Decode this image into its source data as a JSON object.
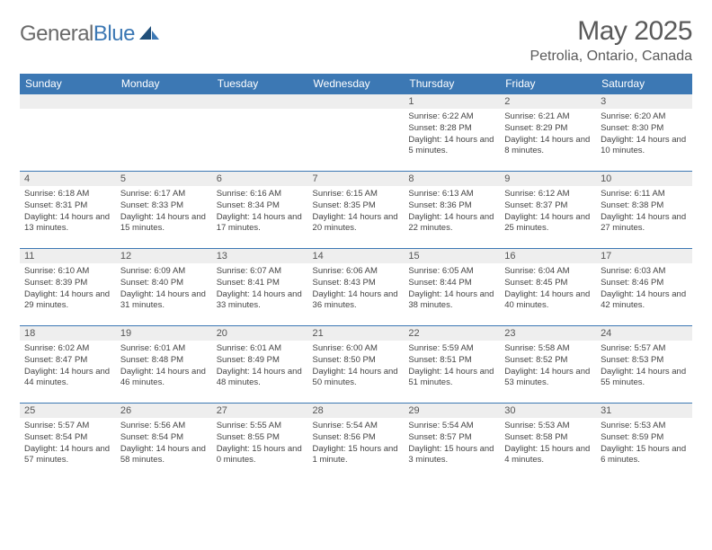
{
  "brand": {
    "part1": "General",
    "part2": "Blue"
  },
  "title": "May 2025",
  "location": "Petrolia, Ontario, Canada",
  "colors": {
    "brand_blue": "#3c78b4",
    "header_row_bg": "#3c78b4",
    "header_row_text": "#ffffff",
    "daynum_bg": "#eeeeee",
    "border": "#3c78b4",
    "text": "#444444"
  },
  "day_headers": [
    "Sunday",
    "Monday",
    "Tuesday",
    "Wednesday",
    "Thursday",
    "Friday",
    "Saturday"
  ],
  "weeks": [
    [
      null,
      null,
      null,
      null,
      {
        "n": "1",
        "sunrise": "6:22 AM",
        "sunset": "8:28 PM",
        "daylight": "14 hours and 5 minutes."
      },
      {
        "n": "2",
        "sunrise": "6:21 AM",
        "sunset": "8:29 PM",
        "daylight": "14 hours and 8 minutes."
      },
      {
        "n": "3",
        "sunrise": "6:20 AM",
        "sunset": "8:30 PM",
        "daylight": "14 hours and 10 minutes."
      }
    ],
    [
      {
        "n": "4",
        "sunrise": "6:18 AM",
        "sunset": "8:31 PM",
        "daylight": "14 hours and 13 minutes."
      },
      {
        "n": "5",
        "sunrise": "6:17 AM",
        "sunset": "8:33 PM",
        "daylight": "14 hours and 15 minutes."
      },
      {
        "n": "6",
        "sunrise": "6:16 AM",
        "sunset": "8:34 PM",
        "daylight": "14 hours and 17 minutes."
      },
      {
        "n": "7",
        "sunrise": "6:15 AM",
        "sunset": "8:35 PM",
        "daylight": "14 hours and 20 minutes."
      },
      {
        "n": "8",
        "sunrise": "6:13 AM",
        "sunset": "8:36 PM",
        "daylight": "14 hours and 22 minutes."
      },
      {
        "n": "9",
        "sunrise": "6:12 AM",
        "sunset": "8:37 PM",
        "daylight": "14 hours and 25 minutes."
      },
      {
        "n": "10",
        "sunrise": "6:11 AM",
        "sunset": "8:38 PM",
        "daylight": "14 hours and 27 minutes."
      }
    ],
    [
      {
        "n": "11",
        "sunrise": "6:10 AM",
        "sunset": "8:39 PM",
        "daylight": "14 hours and 29 minutes."
      },
      {
        "n": "12",
        "sunrise": "6:09 AM",
        "sunset": "8:40 PM",
        "daylight": "14 hours and 31 minutes."
      },
      {
        "n": "13",
        "sunrise": "6:07 AM",
        "sunset": "8:41 PM",
        "daylight": "14 hours and 33 minutes."
      },
      {
        "n": "14",
        "sunrise": "6:06 AM",
        "sunset": "8:43 PM",
        "daylight": "14 hours and 36 minutes."
      },
      {
        "n": "15",
        "sunrise": "6:05 AM",
        "sunset": "8:44 PM",
        "daylight": "14 hours and 38 minutes."
      },
      {
        "n": "16",
        "sunrise": "6:04 AM",
        "sunset": "8:45 PM",
        "daylight": "14 hours and 40 minutes."
      },
      {
        "n": "17",
        "sunrise": "6:03 AM",
        "sunset": "8:46 PM",
        "daylight": "14 hours and 42 minutes."
      }
    ],
    [
      {
        "n": "18",
        "sunrise": "6:02 AM",
        "sunset": "8:47 PM",
        "daylight": "14 hours and 44 minutes."
      },
      {
        "n": "19",
        "sunrise": "6:01 AM",
        "sunset": "8:48 PM",
        "daylight": "14 hours and 46 minutes."
      },
      {
        "n": "20",
        "sunrise": "6:01 AM",
        "sunset": "8:49 PM",
        "daylight": "14 hours and 48 minutes."
      },
      {
        "n": "21",
        "sunrise": "6:00 AM",
        "sunset": "8:50 PM",
        "daylight": "14 hours and 50 minutes."
      },
      {
        "n": "22",
        "sunrise": "5:59 AM",
        "sunset": "8:51 PM",
        "daylight": "14 hours and 51 minutes."
      },
      {
        "n": "23",
        "sunrise": "5:58 AM",
        "sunset": "8:52 PM",
        "daylight": "14 hours and 53 minutes."
      },
      {
        "n": "24",
        "sunrise": "5:57 AM",
        "sunset": "8:53 PM",
        "daylight": "14 hours and 55 minutes."
      }
    ],
    [
      {
        "n": "25",
        "sunrise": "5:57 AM",
        "sunset": "8:54 PM",
        "daylight": "14 hours and 57 minutes."
      },
      {
        "n": "26",
        "sunrise": "5:56 AM",
        "sunset": "8:54 PM",
        "daylight": "14 hours and 58 minutes."
      },
      {
        "n": "27",
        "sunrise": "5:55 AM",
        "sunset": "8:55 PM",
        "daylight": "15 hours and 0 minutes."
      },
      {
        "n": "28",
        "sunrise": "5:54 AM",
        "sunset": "8:56 PM",
        "daylight": "15 hours and 1 minute."
      },
      {
        "n": "29",
        "sunrise": "5:54 AM",
        "sunset": "8:57 PM",
        "daylight": "15 hours and 3 minutes."
      },
      {
        "n": "30",
        "sunrise": "5:53 AM",
        "sunset": "8:58 PM",
        "daylight": "15 hours and 4 minutes."
      },
      {
        "n": "31",
        "sunrise": "5:53 AM",
        "sunset": "8:59 PM",
        "daylight": "15 hours and 6 minutes."
      }
    ]
  ],
  "labels": {
    "sunrise": "Sunrise: ",
    "sunset": "Sunset: ",
    "daylight": "Daylight: "
  }
}
